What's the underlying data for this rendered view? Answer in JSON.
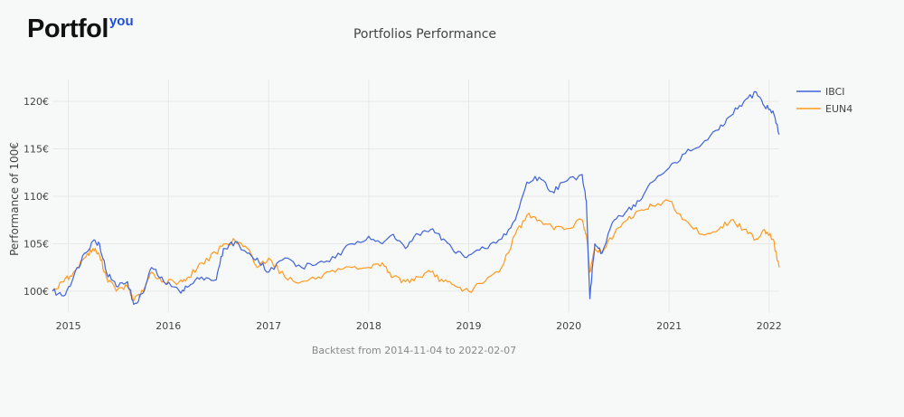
{
  "logo": {
    "main": "Portfol",
    "sup": "you"
  },
  "chart_data": {
    "type": "line",
    "title": "Portfolios Performance",
    "subtitle": "Backtest from 2014-11-04 to 2022-02-07",
    "xlabel": "",
    "ylabel": "Performance of 100€",
    "xlim": [
      "2014-11-04",
      "2022-02-07"
    ],
    "ylim": [
      97.8,
      122.3
    ],
    "y_ticks": [
      100,
      105,
      110,
      115,
      120
    ],
    "y_tick_labels": [
      "100€",
      "105€",
      "110€",
      "115€",
      "120€"
    ],
    "x_ticks": [
      "2015-01-01",
      "2016-01-01",
      "2017-01-01",
      "2018-01-01",
      "2019-01-01",
      "2020-01-01",
      "2021-01-01",
      "2022-01-01"
    ],
    "x_tick_labels": [
      "2015",
      "2016",
      "2017",
      "2018",
      "2019",
      "2020",
      "2021",
      "2022"
    ],
    "grid": true,
    "legend_position": "top-right",
    "series": [
      {
        "name": "IBCI",
        "color": "#3f63d8",
        "points": [
          [
            "2014-11-04",
            100.0
          ],
          [
            "2014-12-15",
            99.5
          ],
          [
            "2015-01-20",
            101.5
          ],
          [
            "2015-03-01",
            104.0
          ],
          [
            "2015-04-01",
            105.3
          ],
          [
            "2015-04-25",
            105.0
          ],
          [
            "2015-05-20",
            102.0
          ],
          [
            "2015-06-25",
            100.5
          ],
          [
            "2015-08-05",
            101.0
          ],
          [
            "2015-08-28",
            98.6
          ],
          [
            "2015-10-01",
            99.8
          ],
          [
            "2015-11-01",
            102.5
          ],
          [
            "2015-12-15",
            101.0
          ],
          [
            "2016-02-10",
            100.0
          ],
          [
            "2016-03-15",
            100.5
          ],
          [
            "2016-05-01",
            101.5
          ],
          [
            "2016-06-24",
            101.2
          ],
          [
            "2016-07-20",
            104.5
          ],
          [
            "2016-09-01",
            105.2
          ],
          [
            "2016-10-15",
            104.0
          ],
          [
            "2016-11-20",
            103.5
          ],
          [
            "2017-01-01",
            102.0
          ],
          [
            "2017-03-01",
            103.5
          ],
          [
            "2017-05-01",
            102.5
          ],
          [
            "2017-07-01",
            103.0
          ],
          [
            "2017-09-01",
            103.5
          ],
          [
            "2017-11-01",
            105.0
          ],
          [
            "2018-01-01",
            105.8
          ],
          [
            "2018-02-20",
            105.0
          ],
          [
            "2018-04-01",
            106.0
          ],
          [
            "2018-05-15",
            104.5
          ],
          [
            "2018-07-01",
            106.0
          ],
          [
            "2018-08-15",
            106.5
          ],
          [
            "2018-10-01",
            105.5
          ],
          [
            "2018-11-15",
            104.0
          ],
          [
            "2019-01-01",
            103.8
          ],
          [
            "2019-03-01",
            104.5
          ],
          [
            "2019-05-01",
            105.5
          ],
          [
            "2019-06-20",
            107.5
          ],
          [
            "2019-08-01",
            111.5
          ],
          [
            "2019-09-15",
            112.0
          ],
          [
            "2019-11-01",
            110.5
          ],
          [
            "2019-12-15",
            111.5
          ],
          [
            "2020-02-19",
            112.3
          ],
          [
            "2020-03-05",
            109.5
          ],
          [
            "2020-03-18",
            99.2
          ],
          [
            "2020-04-05",
            105.0
          ],
          [
            "2020-05-01",
            104.0
          ],
          [
            "2020-06-15",
            107.5
          ],
          [
            "2020-08-01",
            108.5
          ],
          [
            "2020-09-15",
            109.5
          ],
          [
            "2020-11-01",
            111.5
          ],
          [
            "2021-01-01",
            113.0
          ],
          [
            "2021-03-01",
            114.5
          ],
          [
            "2021-05-01",
            115.5
          ],
          [
            "2021-07-01",
            117.0
          ],
          [
            "2021-08-15",
            118.5
          ],
          [
            "2021-10-01",
            120.0
          ],
          [
            "2021-11-15",
            121.0
          ],
          [
            "2021-12-15",
            119.5
          ],
          [
            "2022-01-15",
            119.0
          ],
          [
            "2022-02-07",
            116.5
          ]
        ]
      },
      {
        "name": "EUN4",
        "color": "#ff9a1e",
        "points": [
          [
            "2014-11-04",
            100.0
          ],
          [
            "2014-12-15",
            101.0
          ],
          [
            "2015-01-20",
            102.0
          ],
          [
            "2015-03-01",
            103.5
          ],
          [
            "2015-04-01",
            104.5
          ],
          [
            "2015-04-25",
            103.8
          ],
          [
            "2015-05-20",
            101.5
          ],
          [
            "2015-06-25",
            100.0
          ],
          [
            "2015-08-05",
            100.5
          ],
          [
            "2015-08-28",
            99.0
          ],
          [
            "2015-10-01",
            100.0
          ],
          [
            "2015-11-01",
            102.0
          ],
          [
            "2015-12-15",
            101.0
          ],
          [
            "2016-02-10",
            101.0
          ],
          [
            "2016-03-15",
            101.5
          ],
          [
            "2016-05-01",
            103.0
          ],
          [
            "2016-06-24",
            104.0
          ],
          [
            "2016-07-20",
            105.0
          ],
          [
            "2016-09-01",
            105.3
          ],
          [
            "2016-10-15",
            104.5
          ],
          [
            "2016-11-20",
            102.5
          ],
          [
            "2017-01-01",
            103.5
          ],
          [
            "2017-03-01",
            101.5
          ],
          [
            "2017-05-01",
            101.0
          ],
          [
            "2017-07-01",
            101.5
          ],
          [
            "2017-09-01",
            102.0
          ],
          [
            "2017-11-01",
            102.5
          ],
          [
            "2018-01-01",
            102.5
          ],
          [
            "2018-02-20",
            103.0
          ],
          [
            "2018-04-01",
            101.5
          ],
          [
            "2018-05-15",
            101.0
          ],
          [
            "2018-07-01",
            101.5
          ],
          [
            "2018-08-15",
            102.0
          ],
          [
            "2018-10-01",
            101.0
          ],
          [
            "2018-11-15",
            100.5
          ],
          [
            "2019-01-01",
            100.0
          ],
          [
            "2019-03-01",
            101.0
          ],
          [
            "2019-05-01",
            102.5
          ],
          [
            "2019-06-20",
            106.0
          ],
          [
            "2019-08-01",
            108.0
          ],
          [
            "2019-09-15",
            107.5
          ],
          [
            "2019-11-01",
            106.8
          ],
          [
            "2019-12-15",
            106.5
          ],
          [
            "2020-02-19",
            107.5
          ],
          [
            "2020-03-05",
            106.0
          ],
          [
            "2020-03-18",
            102.0
          ],
          [
            "2020-04-05",
            104.5
          ],
          [
            "2020-05-01",
            104.0
          ],
          [
            "2020-06-15",
            106.0
          ],
          [
            "2020-08-01",
            107.5
          ],
          [
            "2020-09-15",
            108.5
          ],
          [
            "2020-11-01",
            109.0
          ],
          [
            "2021-01-01",
            109.5
          ],
          [
            "2021-03-01",
            107.5
          ],
          [
            "2021-05-01",
            106.0
          ],
          [
            "2021-07-01",
            106.5
          ],
          [
            "2021-08-15",
            107.5
          ],
          [
            "2021-10-01",
            106.5
          ],
          [
            "2021-11-15",
            105.5
          ],
          [
            "2021-12-15",
            106.5
          ],
          [
            "2022-01-15",
            105.5
          ],
          [
            "2022-02-07",
            102.5
          ]
        ]
      }
    ]
  }
}
